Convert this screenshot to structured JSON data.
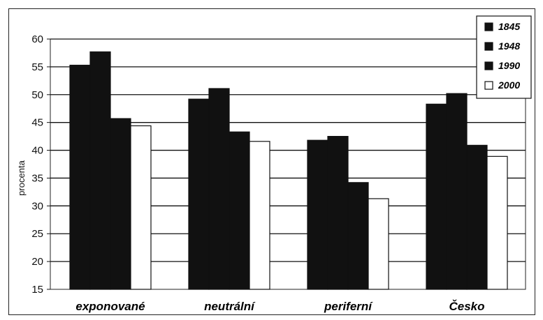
{
  "chart_data": {
    "type": "bar",
    "title": "",
    "xlabel": "",
    "ylabel": "procenta",
    "ylim": [
      15,
      60
    ],
    "yticks": [
      15,
      20,
      25,
      30,
      35,
      40,
      45,
      50,
      55,
      60
    ],
    "grid": true,
    "legend_position": "top-right",
    "categories": [
      "exponované",
      "neutrální",
      "periferní",
      "Česko"
    ],
    "series": [
      {
        "name": "1845",
        "color": "#111111",
        "values": [
          55.3,
          49.2,
          41.8,
          48.3
        ]
      },
      {
        "name": "1948",
        "color": "#111111",
        "values": [
          57.7,
          51.1,
          42.5,
          50.2
        ]
      },
      {
        "name": "1990",
        "color": "#111111",
        "values": [
          45.7,
          43.3,
          34.2,
          40.9
        ]
      },
      {
        "name": "2000",
        "color": "#ffffff",
        "values": [
          44.4,
          41.6,
          31.3,
          38.9
        ]
      }
    ]
  }
}
